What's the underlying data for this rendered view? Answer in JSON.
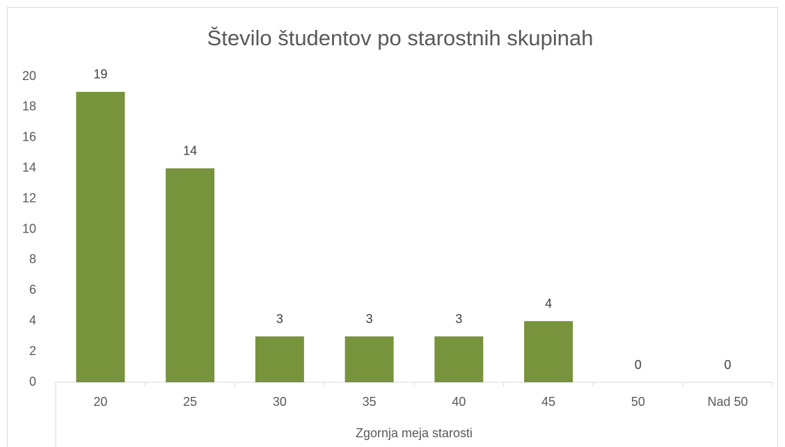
{
  "chart_data": {
    "type": "bar",
    "title": "Število študentov po starostnih skupinah",
    "x_label": "Zgornja meja starosti",
    "categories": [
      "20",
      "25",
      "30",
      "35",
      "40",
      "45",
      "50",
      "Nad 50"
    ],
    "values": [
      19,
      14,
      3,
      3,
      3,
      4,
      0,
      0
    ],
    "color": "#77933c",
    "ylim": [
      0,
      20
    ],
    "yticks": [
      0,
      2,
      4,
      6,
      8,
      10,
      12,
      14,
      16,
      18,
      20
    ],
    "grid": false
  }
}
